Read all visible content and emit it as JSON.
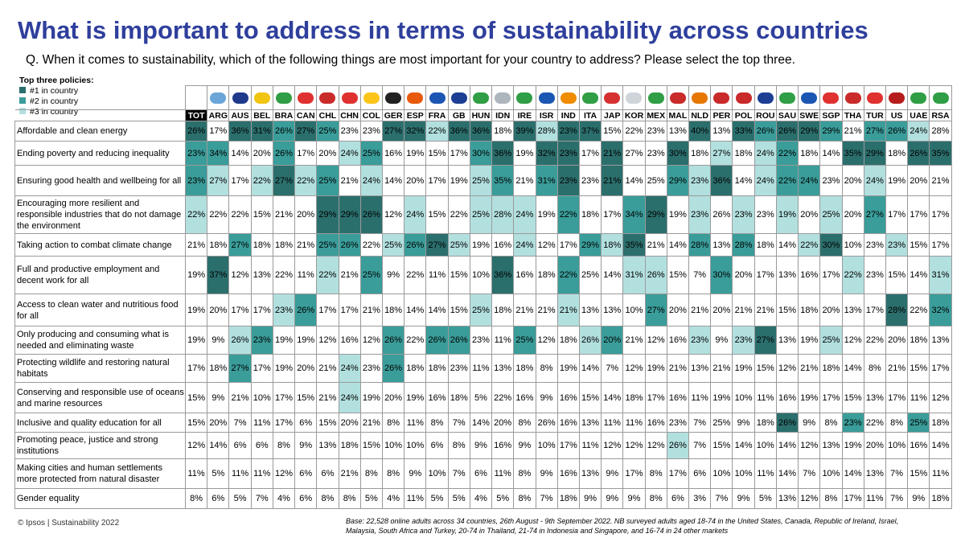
{
  "title": "What is important to address in terms of sustainability across countries",
  "question": "Q. When it comes to sustainability, which of the following things are most important for your country to address? Please select the top three.",
  "legend": {
    "title": "Top three policies:",
    "items": [
      "#1 in country",
      "#2 in country",
      "#3 in country"
    ],
    "colors": [
      "#2b6f6d",
      "#3a9d9a",
      "#b2e0df"
    ]
  },
  "table": {
    "columns": [
      "TOT",
      "ARG",
      "AUS",
      "BEL",
      "BRA",
      "CAN",
      "CHL",
      "CHN",
      "COL",
      "GER",
      "ESP",
      "FRA",
      "GB",
      "HUN",
      "IDN",
      "IRE",
      "ISR",
      "IND",
      "ITA",
      "JAP",
      "KOR",
      "MEX",
      "MAL",
      "NLD",
      "PER",
      "POL",
      "ROU",
      "SAU",
      "SWE",
      "SGP",
      "THA",
      "TUR",
      "US",
      "UAE",
      "RSA"
    ],
    "rows": [
      {
        "label": "Affordable and clean energy",
        "values": [
          "26%",
          "17%",
          "36%",
          "31%",
          "26%",
          "27%",
          "25%",
          "23%",
          "23%",
          "27%",
          "32%",
          "22%",
          "36%",
          "36%",
          "18%",
          "39%",
          "28%",
          "23%",
          "37%",
          "15%",
          "22%",
          "23%",
          "13%",
          "40%",
          "13%",
          "33%",
          "26%",
          "26%",
          "29%",
          "29%",
          "21%",
          "27%",
          "26%",
          "24%",
          "28%"
        ]
      },
      {
        "label": "Ending poverty and reducing inequality",
        "values": [
          "23%",
          "34%",
          "14%",
          "20%",
          "26%",
          "17%",
          "20%",
          "24%",
          "25%",
          "16%",
          "19%",
          "15%",
          "17%",
          "30%",
          "36%",
          "19%",
          "32%",
          "23%",
          "17%",
          "21%",
          "27%",
          "23%",
          "30%",
          "18%",
          "27%",
          "18%",
          "24%",
          "22%",
          "18%",
          "14%",
          "35%",
          "29%",
          "18%",
          "26%",
          "35%"
        ]
      },
      {
        "label": "Ensuring good health and wellbeing for all",
        "values": [
          "23%",
          "27%",
          "17%",
          "22%",
          "27%",
          "22%",
          "25%",
          "21%",
          "24%",
          "14%",
          "20%",
          "17%",
          "19%",
          "25%",
          "35%",
          "21%",
          "31%",
          "23%",
          "23%",
          "21%",
          "14%",
          "25%",
          "29%",
          "23%",
          "36%",
          "14%",
          "24%",
          "22%",
          "24%",
          "23%",
          "20%",
          "24%",
          "19%",
          "20%",
          "21%"
        ]
      },
      {
        "label": "Encouraging more resilient and responsible industries that do not damage the environment",
        "values": [
          "22%",
          "22%",
          "22%",
          "15%",
          "21%",
          "20%",
          "29%",
          "29%",
          "26%",
          "12%",
          "24%",
          "15%",
          "22%",
          "25%",
          "28%",
          "24%",
          "19%",
          "22%",
          "18%",
          "17%",
          "34%",
          "29%",
          "19%",
          "23%",
          "26%",
          "23%",
          "23%",
          "19%",
          "20%",
          "25%",
          "20%",
          "27%",
          "17%",
          "17%",
          "17%"
        ]
      },
      {
        "label": "Taking action to combat climate change",
        "values": [
          "21%",
          "18%",
          "27%",
          "18%",
          "18%",
          "21%",
          "25%",
          "26%",
          "22%",
          "25%",
          "26%",
          "27%",
          "25%",
          "19%",
          "16%",
          "24%",
          "12%",
          "17%",
          "29%",
          "18%",
          "35%",
          "21%",
          "14%",
          "28%",
          "13%",
          "28%",
          "18%",
          "14%",
          "22%",
          "30%",
          "10%",
          "23%",
          "23%",
          "15%",
          "17%"
        ]
      },
      {
        "label": "Full and productive employment and decent work for all",
        "values": [
          "19%",
          "37%",
          "12%",
          "13%",
          "22%",
          "11%",
          "22%",
          "21%",
          "25%",
          "9%",
          "22%",
          "11%",
          "15%",
          "10%",
          "36%",
          "16%",
          "18%",
          "22%",
          "25%",
          "14%",
          "31%",
          "26%",
          "15%",
          "7%",
          "30%",
          "20%",
          "17%",
          "13%",
          "16%",
          "17%",
          "22%",
          "23%",
          "15%",
          "14%",
          "31%"
        ]
      },
      {
        "label": "Access to clean water and nutritious food for all",
        "values": [
          "19%",
          "20%",
          "17%",
          "17%",
          "23%",
          "26%",
          "17%",
          "17%",
          "21%",
          "18%",
          "14%",
          "14%",
          "15%",
          "25%",
          "18%",
          "21%",
          "21%",
          "21%",
          "13%",
          "13%",
          "10%",
          "27%",
          "20%",
          "21%",
          "20%",
          "21%",
          "21%",
          "15%",
          "18%",
          "20%",
          "13%",
          "17%",
          "28%",
          "22%",
          "32%"
        ]
      },
      {
        "label": "Only producing and consuming what is needed and eliminating waste",
        "values": [
          "19%",
          "9%",
          "26%",
          "23%",
          "19%",
          "19%",
          "12%",
          "16%",
          "12%",
          "26%",
          "22%",
          "26%",
          "26%",
          "23%",
          "11%",
          "25%",
          "12%",
          "18%",
          "26%",
          "20%",
          "21%",
          "12%",
          "16%",
          "23%",
          "9%",
          "23%",
          "27%",
          "13%",
          "19%",
          "25%",
          "12%",
          "22%",
          "20%",
          "18%",
          "13%"
        ]
      },
      {
        "label": "Protecting wildlife and restoring natural habitats",
        "values": [
          "17%",
          "18%",
          "27%",
          "17%",
          "19%",
          "20%",
          "21%",
          "24%",
          "23%",
          "26%",
          "18%",
          "18%",
          "23%",
          "11%",
          "13%",
          "18%",
          "8%",
          "19%",
          "14%",
          "7%",
          "12%",
          "19%",
          "21%",
          "13%",
          "21%",
          "19%",
          "15%",
          "12%",
          "21%",
          "18%",
          "14%",
          "8%",
          "21%",
          "15%",
          "17%"
        ]
      },
      {
        "label": "Conserving and responsible use of oceans and marine resources",
        "values": [
          "15%",
          "9%",
          "21%",
          "10%",
          "17%",
          "15%",
          "21%",
          "24%",
          "19%",
          "20%",
          "19%",
          "16%",
          "18%",
          "5%",
          "22%",
          "16%",
          "9%",
          "16%",
          "15%",
          "14%",
          "18%",
          "17%",
          "16%",
          "11%",
          "19%",
          "10%",
          "11%",
          "16%",
          "19%",
          "17%",
          "15%",
          "13%",
          "17%",
          "11%",
          "12%"
        ]
      },
      {
        "label": "Inclusive and quality education for all",
        "values": [
          "15%",
          "20%",
          "7%",
          "11%",
          "17%",
          "6%",
          "15%",
          "20%",
          "21%",
          "8%",
          "11%",
          "8%",
          "7%",
          "14%",
          "20%",
          "8%",
          "26%",
          "16%",
          "13%",
          "11%",
          "11%",
          "16%",
          "23%",
          "7%",
          "25%",
          "9%",
          "18%",
          "26%",
          "9%",
          "8%",
          "23%",
          "22%",
          "8%",
          "25%",
          "18%"
        ]
      },
      {
        "label": "Promoting peace, justice and strong institutions",
        "values": [
          "12%",
          "14%",
          "6%",
          "6%",
          "8%",
          "9%",
          "13%",
          "18%",
          "15%",
          "10%",
          "10%",
          "6%",
          "8%",
          "9%",
          "16%",
          "9%",
          "10%",
          "17%",
          "11%",
          "12%",
          "12%",
          "12%",
          "26%",
          "7%",
          "15%",
          "14%",
          "10%",
          "14%",
          "12%",
          "13%",
          "19%",
          "20%",
          "10%",
          "16%",
          "14%"
        ]
      },
      {
        "label": "Making cities and human settlements more protected from natural disaster",
        "values": [
          "11%",
          "5%",
          "11%",
          "11%",
          "12%",
          "6%",
          "6%",
          "21%",
          "8%",
          "8%",
          "9%",
          "10%",
          "7%",
          "6%",
          "11%",
          "8%",
          "9%",
          "16%",
          "13%",
          "9%",
          "17%",
          "8%",
          "17%",
          "6%",
          "10%",
          "10%",
          "11%",
          "14%",
          "7%",
          "10%",
          "14%",
          "13%",
          "7%",
          "15%",
          "11%"
        ]
      },
      {
        "label": "Gender equality",
        "values": [
          "8%",
          "6%",
          "5%",
          "7%",
          "4%",
          "6%",
          "8%",
          "8%",
          "5%",
          "4%",
          "11%",
          "5%",
          "5%",
          "4%",
          "5%",
          "8%",
          "7%",
          "18%",
          "9%",
          "9%",
          "9%",
          "8%",
          "6%",
          "3%",
          "7%",
          "9%",
          "5%",
          "13%",
          "12%",
          "8%",
          "17%",
          "11%",
          "7%",
          "9%",
          "18%"
        ]
      }
    ]
  },
  "footer": {
    "copyright": "© Ipsos | Sustainability 2022",
    "base": "Base: 22,528 online adults across 34 countries, 26th August - 9th September 2022. NB surveyed adults aged 18-74 in the United States, Canada, Republic of Ireland, Israel, Malaysia, South Africa and Turkey, 20-74 in Thailand, 21-74 in Indonesia and Singapore, and 16-74 in 24 other markets"
  }
}
